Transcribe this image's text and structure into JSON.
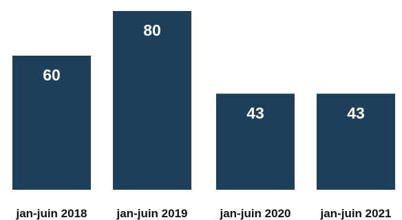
{
  "chart_data": {
    "type": "bar",
    "categories": [
      "jan-juin 2018",
      "jan-juin 2019",
      "jan-juin 2020",
      "jan-juin 2021"
    ],
    "values": [
      60,
      80,
      43,
      43
    ],
    "title": "",
    "xlabel": "",
    "ylabel": "",
    "ylim": [
      0,
      80
    ],
    "grid": false,
    "legend": "none",
    "data_labels": [
      "60",
      "80",
      "43",
      "43"
    ],
    "colors": {
      "bar": "#1e3f5a",
      "label": "#ffffff",
      "tick": "#111111"
    }
  }
}
